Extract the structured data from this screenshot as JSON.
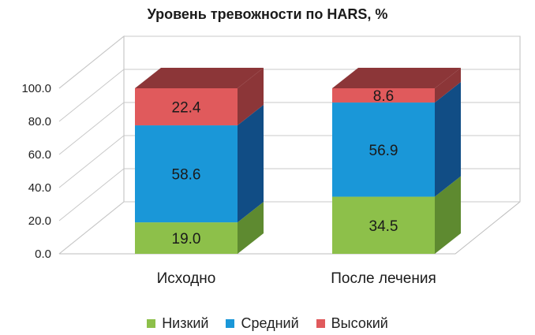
{
  "chart_data": {
    "type": "bar",
    "stacked": true,
    "three_d": true,
    "title": "Уровень тревожности по HARS, %",
    "categories": [
      "Исходно",
      "После лечения"
    ],
    "series": [
      {
        "name": "Низкий",
        "values": [
          19.0,
          34.5
        ],
        "color": "#8dc04a",
        "side_color": "#5e8a30",
        "label_text": [
          "19.0",
          "34.5"
        ]
      },
      {
        "name": "Средний",
        "values": [
          58.6,
          56.9
        ],
        "color": "#1a97d8",
        "side_color": "#114d85",
        "label_text": [
          "58.6",
          "56.9"
        ]
      },
      {
        "name": "Высокий",
        "values": [
          22.4,
          8.6
        ],
        "color": "#e05a5c",
        "side_color": "#8c3638",
        "label_text": [
          "22.4",
          "8.6"
        ]
      }
    ],
    "ylim": [
      0,
      100
    ],
    "yticks": [
      "0.0",
      "20.0",
      "40.0",
      "60.0",
      "80.0",
      "100.0"
    ],
    "grid": true,
    "legend_position": "bottom"
  }
}
